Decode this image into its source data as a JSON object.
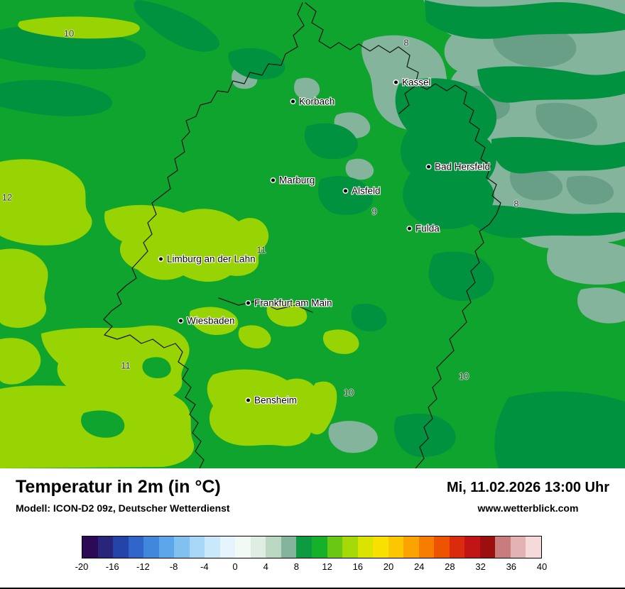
{
  "map": {
    "colors": {
      "base": "#0fa42d",
      "dark": "#00923f",
      "gray1": "#84b49c",
      "gray2": "#699f87",
      "yellow": "#98d303",
      "border": "#141414"
    },
    "cities": [
      {
        "name": "Kassel"
      },
      {
        "name": "Korbach"
      },
      {
        "name": "Bad Hersfeld"
      },
      {
        "name": "Marburg"
      },
      {
        "name": "Alsfeld"
      },
      {
        "name": "Fulda"
      },
      {
        "name": "Limburg an der Lahn"
      },
      {
        "name": "Frankfurt am Main"
      },
      {
        "name": "Wiesbaden"
      },
      {
        "name": "Bensheim"
      }
    ],
    "temps": [
      {
        "value": "10"
      },
      {
        "value": "8"
      },
      {
        "value": "12"
      },
      {
        "value": "9"
      },
      {
        "value": "8"
      },
      {
        "value": "11"
      },
      {
        "value": "11"
      },
      {
        "value": "10"
      },
      {
        "value": "10"
      }
    ]
  },
  "footer": {
    "title": "Temperatur in 2m (in °C)",
    "model": "Modell: ICON-D2 09z, Deutscher Wetterdienst",
    "datetime": "Mi, 11.02.2026 13:00 Uhr",
    "website": "www.wetterblick.com"
  },
  "colorbar": {
    "ticks": [
      "-20",
      "-16",
      "-12",
      "-8",
      "-4",
      "0",
      "4",
      "8",
      "12",
      "16",
      "20",
      "24",
      "28",
      "32",
      "36",
      "40"
    ],
    "colors": [
      "#2d0a55",
      "#29257b",
      "#2443a8",
      "#2f64c9",
      "#4088dc",
      "#5ca7e9",
      "#80c1f0",
      "#a6d7f7",
      "#c9e8fa",
      "#e5f4fc",
      "#f2faf6",
      "#dfeee3",
      "#b9d7c1",
      "#84b49c",
      "#0d9a40",
      "#15b12b",
      "#68c813",
      "#a5d807",
      "#dae400",
      "#f8e000",
      "#fcc700",
      "#fba301",
      "#f67d00",
      "#ee5300",
      "#dc2b0c",
      "#c11414",
      "#9d0f0f",
      "#c97c7c",
      "#e3b2b2",
      "#f6dada"
    ]
  }
}
